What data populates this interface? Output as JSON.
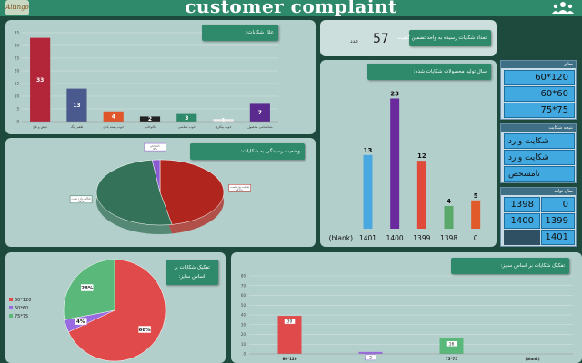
{
  "header": {
    "title": "customer complaint",
    "logo_text": "Altıngo",
    "people_icon": "people-group-icon"
  },
  "colors": {
    "header": "#2e8a6a",
    "panel": "#b3cfcb",
    "slicer": "#42a8e0",
    "bg": "#1d4a3c"
  },
  "kpi": {
    "label": "تعداد شکایات رسیده به واحد تضمین کیفیت:",
    "value": "57",
    "unit": "عدد"
  },
  "causes_chart": {
    "title": "علل شکایات:",
    "chart_data": {
      "type": "bar",
      "categories": [
        "ترش و تلخ",
        "طعم رنگ",
        "خوب پسته بادی",
        "ناکوخانی",
        "خوب سلامتی",
        "خوب بیکاری",
        "شناسنامی محصول"
      ],
      "values": [
        33,
        13,
        4,
        2,
        3,
        1,
        7
      ],
      "colors": [
        "#b3263a",
        "#4a5a8e",
        "#e0562a",
        "#222222",
        "#2e8a6a",
        "#eeeeee",
        "#5a2a8e"
      ],
      "ylim": [
        0,
        35
      ],
      "yticks": [
        0,
        5,
        10,
        15,
        20,
        25,
        30,
        35
      ],
      "grid": true
    }
  },
  "year_chart": {
    "title": "سال تولید محصولات شکایات شده:",
    "chart_data": {
      "type": "bar",
      "categories": [
        "(blank)",
        "1401",
        "1400",
        "1399",
        "1398",
        "0"
      ],
      "values": [
        null,
        13,
        23,
        12,
        4,
        5
      ],
      "colors": [
        "#000000",
        "#4aa8e0",
        "#6a2a9e",
        "#e04a3a",
        "#5aa86a",
        "#e05a2a"
      ],
      "ylim": [
        0,
        25
      ]
    }
  },
  "status_chart": {
    "title": "وضعیت رسیدگی به شکایات:",
    "chart_data": {
      "type": "pie",
      "labels": [
        "شکایت وارد است",
        "شکایت وارد نیست",
        "نامشخص"
      ],
      "values": [
        47,
        51,
        2
      ],
      "label_text": [
        "47%",
        "51%",
        "2%"
      ],
      "colors": [
        "#b0261e",
        "#35725a",
        "#8a5ad0"
      ]
    }
  },
  "size_pie": {
    "title": "تفکیک شکایات بر اساس سایز:",
    "legend": [
      "60*120",
      "60*60",
      "75*75"
    ],
    "chart_data": {
      "type": "pie",
      "labels": [
        "60*120",
        "60*60",
        "75*75"
      ],
      "values": [
        68,
        4,
        28
      ],
      "label_text": [
        "68%",
        "4%",
        "28%"
      ],
      "colors": [
        "#e04a4a",
        "#9a6ae0",
        "#5ab87a"
      ]
    }
  },
  "size_bar": {
    "title": "تفکیک شکایات بر اساس سایز:",
    "chart_data": {
      "type": "bar",
      "categories": [
        "60*120",
        "60*60",
        "75*75",
        "(blank)"
      ],
      "values": [
        39,
        2,
        16,
        null
      ],
      "colors": [
        "#e04a4a",
        "#9a6ae0",
        "#5ab87a",
        "#000000"
      ],
      "ylim": [
        0,
        80
      ],
      "yticks": [
        0,
        10,
        20,
        30,
        40,
        50,
        60,
        70,
        80
      ],
      "grid": true
    }
  },
  "slicers": {
    "size": {
      "title": "سایز",
      "items": [
        "60*120",
        "60*60",
        "75*75"
      ]
    },
    "result": {
      "title": "نتیجه شکایت",
      "items": [
        "شکایت وارد است",
        "شکایت وارد نیست",
        "نامشخص"
      ]
    },
    "year": {
      "title": "سال تولید",
      "items": [
        "0",
        "1398",
        "1399",
        "1400",
        "1401"
      ]
    }
  }
}
